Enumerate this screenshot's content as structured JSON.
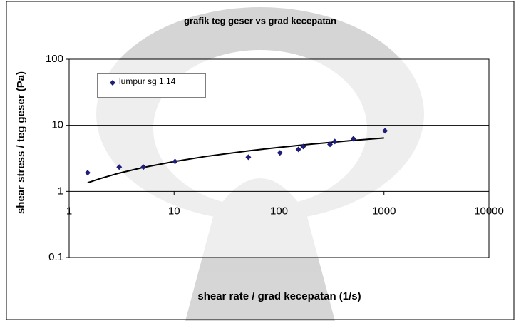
{
  "chart_data": {
    "type": "scatter",
    "title": "grafik teg geser vs grad kecepatan",
    "x_label": "shear rate / grad kecepatan (1/s)",
    "y_label": "shear stress / teg geser (Pa)",
    "log_x": true,
    "log_y": true,
    "xlim": [
      1,
      10000
    ],
    "xticks": [
      1,
      10,
      100,
      1000,
      10000
    ],
    "ylim": [
      0.1,
      100
    ],
    "yticks": [
      0.1,
      1,
      10,
      100
    ],
    "legend": "top-left",
    "series": [
      {
        "name": "lumpur sg 1.14",
        "color": "#1f1f7a",
        "x": [
          1.5,
          3,
          5.1,
          10.2,
          51,
          102,
          153,
          170,
          306,
          340,
          511,
          1022
        ],
        "values": [
          1.91,
          2.33,
          2.33,
          2.84,
          3.29,
          3.83,
          4.33,
          4.78,
          5.15,
          5.69,
          6.27,
          8.25
        ]
      }
    ],
    "trendline": {
      "color": "#000000",
      "x": [
        1.5,
        2,
        3,
        5,
        10,
        20,
        50,
        100,
        200,
        500,
        1000
      ],
      "values": [
        1.35,
        1.57,
        1.89,
        2.29,
        2.83,
        3.38,
        4.09,
        4.64,
        5.18,
        5.9,
        6.44
      ]
    }
  }
}
